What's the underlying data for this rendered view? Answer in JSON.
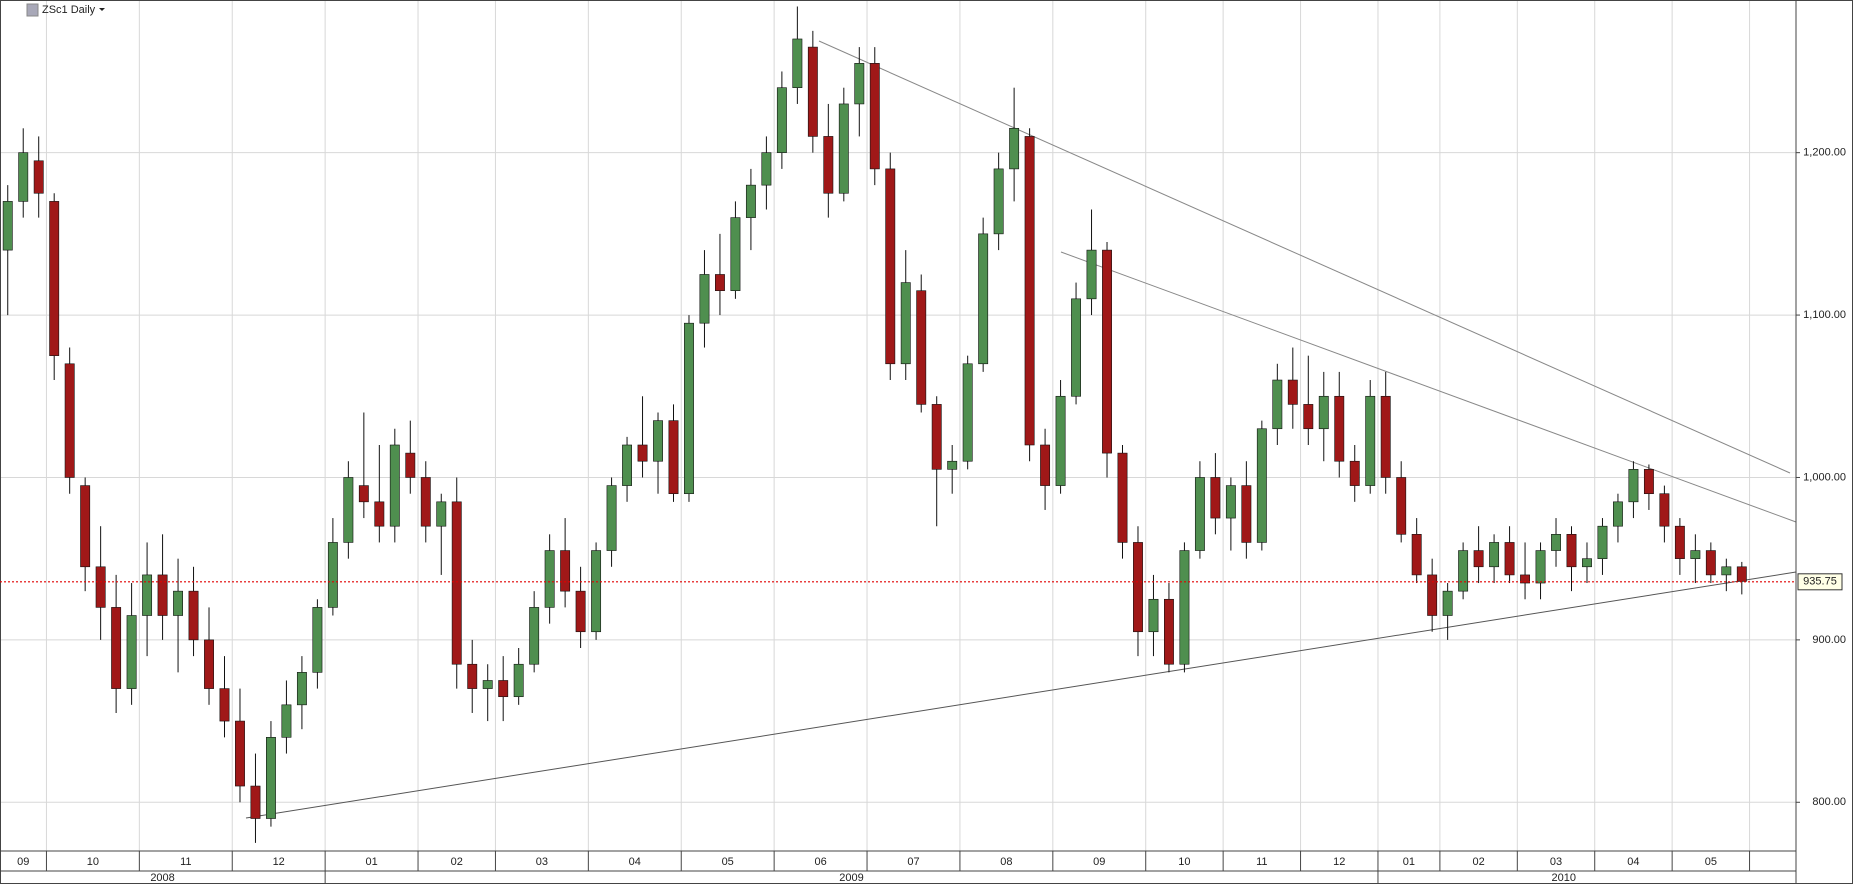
{
  "chart_data": {
    "type": "candlestick",
    "title": "ZSc1 Daily",
    "ylim": [
      770,
      1294
    ],
    "yticks": [
      {
        "value": 800,
        "label": "800.00"
      },
      {
        "value": 900,
        "label": "900.00"
      },
      {
        "value": 1000,
        "label": "1,000.00"
      },
      {
        "value": 1100,
        "label": "1,100.00"
      },
      {
        "value": 1200,
        "label": "1,200.00"
      }
    ],
    "grid": true,
    "up_color": "#4f8f4f",
    "down_color": "#a01818",
    "last_price": {
      "value": 935.75,
      "label": "935.75"
    },
    "last_price_color": "#e00000",
    "years": [
      {
        "label": "2008",
        "months": [
          {
            "label": "09",
            "open": [
              1140,
              1170,
              1195
            ],
            "high": [
              1180,
              1215,
              1210
            ],
            "low": [
              1100,
              1160,
              1160
            ],
            "close": [
              1170,
              1200,
              1175
            ]
          },
          {
            "label": "10",
            "open": [
              1170,
              1070,
              995,
              945,
              920,
              870
            ],
            "high": [
              1175,
              1080,
              1000,
              970,
              940,
              935
            ],
            "low": [
              1060,
              990,
              930,
              900,
              855,
              860
            ],
            "close": [
              1075,
              1000,
              945,
              920,
              870,
              915
            ]
          },
          {
            "label": "11",
            "open": [
              915,
              940,
              915,
              930,
              900,
              870
            ],
            "high": [
              960,
              965,
              950,
              945,
              920,
              890
            ],
            "low": [
              890,
              900,
              880,
              890,
              860,
              840
            ],
            "close": [
              940,
              915,
              930,
              900,
              870,
              850
            ]
          },
          {
            "label": "12",
            "open": [
              850,
              810,
              790,
              840,
              860,
              880
            ],
            "high": [
              870,
              830,
              850,
              875,
              890,
              925
            ],
            "low": [
              800,
              775,
              785,
              830,
              845,
              870
            ],
            "close": [
              810,
              790,
              840,
              860,
              880,
              920
            ]
          }
        ]
      },
      {
        "label": "2009",
        "months": [
          {
            "label": "01",
            "open": [
              920,
              960,
              995,
              985,
              970,
              1015
            ],
            "high": [
              975,
              1010,
              1040,
              1020,
              1030,
              1035
            ],
            "low": [
              915,
              950,
              975,
              960,
              960,
              990
            ],
            "close": [
              960,
              1000,
              985,
              970,
              1020,
              1000
            ]
          },
          {
            "label": "02",
            "open": [
              1000,
              970,
              985,
              885,
              870
            ],
            "high": [
              1010,
              990,
              1000,
              900,
              885
            ],
            "low": [
              960,
              940,
              870,
              855,
              850
            ],
            "close": [
              970,
              985,
              885,
              870,
              875
            ]
          },
          {
            "label": "03",
            "open": [
              875,
              865,
              885,
              920,
              955,
              930
            ],
            "high": [
              890,
              895,
              930,
              965,
              975,
              945
            ],
            "low": [
              850,
              860,
              880,
              910,
              920,
              895
            ],
            "close": [
              865,
              885,
              920,
              955,
              930,
              905
            ]
          },
          {
            "label": "04",
            "open": [
              905,
              955,
              995,
              1020,
              1010,
              1035
            ],
            "high": [
              960,
              1000,
              1025,
              1050,
              1040,
              1045
            ],
            "low": [
              900,
              945,
              985,
              1000,
              990,
              985
            ],
            "close": [
              955,
              995,
              1020,
              1010,
              1035,
              990
            ]
          },
          {
            "label": "05",
            "open": [
              990,
              1095,
              1125,
              1115,
              1160,
              1180
            ],
            "high": [
              1100,
              1140,
              1150,
              1170,
              1190,
              1210
            ],
            "low": [
              985,
              1080,
              1100,
              1110,
              1140,
              1165
            ],
            "close": [
              1095,
              1125,
              1115,
              1160,
              1180,
              1200
            ]
          },
          {
            "label": "06",
            "open": [
              1200,
              1240,
              1265,
              1210,
              1175,
              1230
            ],
            "high": [
              1250,
              1290,
              1275,
              1230,
              1240,
              1265
            ],
            "low": [
              1190,
              1230,
              1200,
              1160,
              1170,
              1210
            ],
            "close": [
              1240,
              1270,
              1210,
              1175,
              1230,
              1255
            ]
          },
          {
            "label": "07",
            "open": [
              1255,
              1190,
              1070,
              1115,
              1045,
              1005
            ],
            "high": [
              1265,
              1200,
              1140,
              1125,
              1050,
              1020
            ],
            "low": [
              1180,
              1060,
              1060,
              1040,
              970,
              990
            ],
            "close": [
              1190,
              1070,
              1120,
              1045,
              1005,
              1010
            ]
          },
          {
            "label": "08",
            "open": [
              1010,
              1070,
              1150,
              1190,
              1210,
              1020
            ],
            "high": [
              1075,
              1160,
              1200,
              1240,
              1215,
              1030
            ],
            "low": [
              1005,
              1065,
              1140,
              1170,
              1010,
              980
            ],
            "close": [
              1070,
              1150,
              1190,
              1215,
              1020,
              995
            ]
          },
          {
            "label": "09",
            "open": [
              995,
              1050,
              1110,
              1140,
              1015,
              960
            ],
            "high": [
              1060,
              1120,
              1165,
              1145,
              1020,
              970
            ],
            "low": [
              990,
              1045,
              1100,
              1000,
              950,
              890
            ],
            "close": [
              1050,
              1110,
              1140,
              1015,
              960,
              905
            ]
          },
          {
            "label": "10",
            "open": [
              905,
              925,
              885,
              955,
              1000
            ],
            "high": [
              940,
              935,
              960,
              1010,
              1015
            ],
            "low": [
              890,
              880,
              880,
              950,
              965
            ],
            "close": [
              925,
              885,
              955,
              1000,
              975
            ]
          },
          {
            "label": "11",
            "open": [
              975,
              995,
              960,
              1030,
              1060
            ],
            "high": [
              1000,
              1010,
              1035,
              1070,
              1080
            ],
            "low": [
              955,
              950,
              955,
              1020,
              1030
            ],
            "close": [
              995,
              960,
              1030,
              1060,
              1045
            ]
          },
          {
            "label": "12",
            "open": [
              1045,
              1030,
              1050,
              1010,
              995
            ],
            "high": [
              1075,
              1065,
              1065,
              1020,
              1060
            ],
            "low": [
              1020,
              1010,
              1000,
              985,
              990
            ],
            "close": [
              1030,
              1050,
              1010,
              995,
              1050
            ]
          }
        ]
      },
      {
        "label": "2010",
        "months": [
          {
            "label": "01",
            "open": [
              1050,
              1000,
              965,
              940
            ],
            "high": [
              1065,
              1010,
              975,
              950
            ],
            "low": [
              990,
              960,
              935,
              905
            ],
            "close": [
              1000,
              965,
              940,
              915
            ]
          },
          {
            "label": "02",
            "open": [
              915,
              930,
              955,
              945,
              960
            ],
            "high": [
              935,
              960,
              970,
              965,
              970
            ],
            "low": [
              900,
              925,
              935,
              935,
              935
            ],
            "close": [
              930,
              955,
              945,
              960,
              940
            ]
          },
          {
            "label": "03",
            "open": [
              940,
              935,
              955,
              965,
              945
            ],
            "high": [
              960,
              960,
              975,
              970,
              960
            ],
            "low": [
              925,
              925,
              945,
              930,
              935
            ],
            "close": [
              935,
              955,
              965,
              945,
              950
            ]
          },
          {
            "label": "04",
            "open": [
              950,
              970,
              985,
              1005,
              990
            ],
            "high": [
              975,
              990,
              1010,
              1008,
              995
            ],
            "low": [
              940,
              960,
              975,
              980,
              960
            ],
            "close": [
              970,
              985,
              1005,
              990,
              970
            ]
          },
          {
            "label": "05",
            "open": [
              970,
              950,
              955,
              940,
              945
            ],
            "high": [
              975,
              965,
              960,
              950,
              948
            ],
            "low": [
              940,
              935,
              935,
              930,
              928
            ],
            "close": [
              950,
              955,
              940,
              945,
              936
            ]
          }
        ]
      }
    ]
  }
}
